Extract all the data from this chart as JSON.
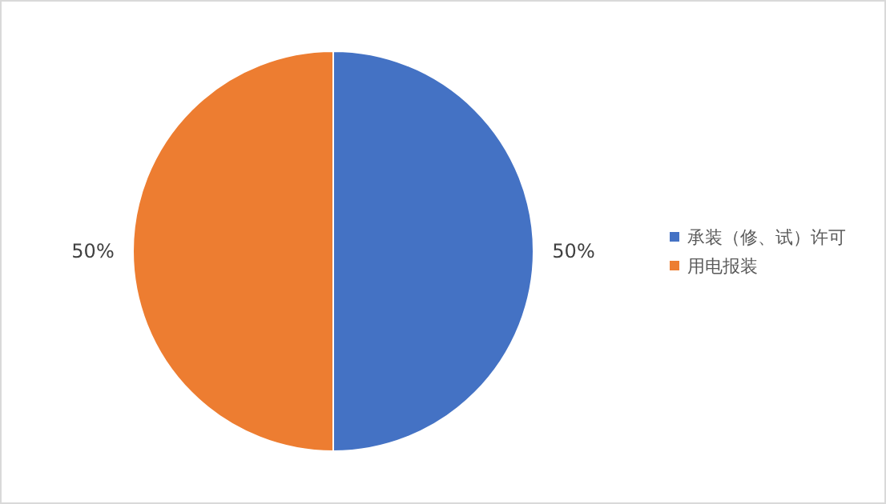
{
  "chart_data": {
    "type": "pie",
    "categories": [
      "承装（修、试）许可",
      "用电报装"
    ],
    "values": [
      50,
      50
    ],
    "colors": [
      "#4472c4",
      "#ed7d31"
    ],
    "value_labels": [
      "50%",
      "50%"
    ],
    "legend": "right"
  }
}
